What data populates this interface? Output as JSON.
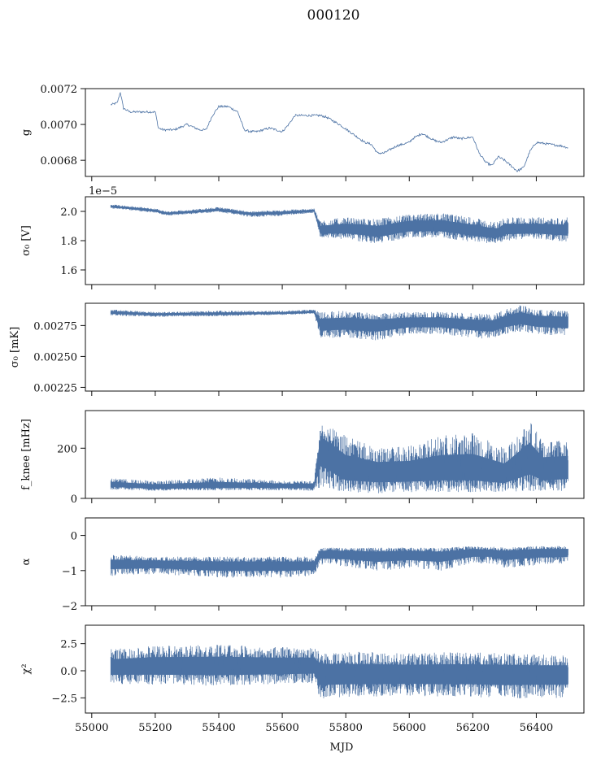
{
  "figure": {
    "title": "000120",
    "xlabel": "MJD",
    "x_ticks": [
      55000,
      55200,
      55400,
      55600,
      55800,
      56000,
      56200,
      56400
    ],
    "x_tick_labels": [
      "55000",
      "55200",
      "55400",
      "55600",
      "55800",
      "56000",
      "56200",
      "56400"
    ]
  },
  "colors": {
    "series": "#4c72a4",
    "axis": "#111111"
  },
  "chart_data": [
    {
      "type": "line",
      "id": "gain",
      "ylabel": "g",
      "xlim": [
        54980,
        56550
      ],
      "ylim": [
        0.00671,
        0.0072
      ],
      "y_ticks": [
        0.0068,
        0.007,
        0.0072
      ],
      "y_tick_labels": [
        "0.0068",
        "0.0070",
        "0.0072"
      ],
      "offset_text": "",
      "style": "thin",
      "series": [
        {
          "x": [
            55060,
            55080,
            55090,
            55100,
            55120,
            55150,
            55180,
            55200,
            55210,
            55225,
            55260,
            55300,
            55340,
            55360,
            55380,
            55400,
            55430,
            55460,
            55480,
            55500,
            55520,
            55560,
            55600,
            55620,
            55640,
            55680,
            55700,
            55720,
            55740,
            55780,
            55820,
            55860,
            55880,
            55900,
            55920,
            55960,
            56000,
            56010,
            56040,
            56080,
            56100,
            56140,
            56160,
            56200,
            56220,
            56240,
            56260,
            56280,
            56300,
            56320,
            56340,
            56360,
            56380,
            56400,
            56440,
            56480,
            56500
          ],
          "y": [
            0.00711,
            0.00712,
            0.00718,
            0.00709,
            0.00707,
            0.00707,
            0.00707,
            0.00707,
            0.00698,
            0.00697,
            0.00697,
            0.007,
            0.00697,
            0.00697,
            0.00705,
            0.0071,
            0.0071,
            0.00707,
            0.00697,
            0.00696,
            0.00696,
            0.00698,
            0.00696,
            0.007,
            0.00705,
            0.00705,
            0.00705,
            0.00705,
            0.00704,
            0.007,
            0.00695,
            0.0069,
            0.00689,
            0.00684,
            0.00684,
            0.00688,
            0.0069,
            0.00692,
            0.00695,
            0.00691,
            0.0069,
            0.00693,
            0.00692,
            0.00693,
            0.00684,
            0.00679,
            0.00677,
            0.00682,
            0.0068,
            0.00677,
            0.00674,
            0.00676,
            0.00685,
            0.0069,
            0.00689,
            0.00688,
            0.00687
          ]
        }
      ]
    },
    {
      "type": "line",
      "id": "sigma0_V",
      "ylabel": "σ₀ [V]",
      "xlim": [
        54980,
        56550
      ],
      "ylim": [
        1.5,
        2.1
      ],
      "y_ticks": [
        1.6,
        1.8,
        2.0
      ],
      "y_tick_labels": [
        "1.6",
        "1.8",
        "2.0"
      ],
      "offset_text": "1e−5",
      "style": "band",
      "series": [
        {
          "x": [
            55060,
            55200,
            55240,
            55400,
            55500,
            55600,
            55700,
            55720,
            55800,
            55850,
            55900,
            56000,
            56100,
            56200,
            56260,
            56280,
            56300,
            56400,
            56500
          ],
          "center": [
            2.035,
            2.005,
            1.985,
            2.01,
            1.985,
            1.99,
            2.005,
            1.87,
            1.88,
            1.88,
            1.86,
            1.9,
            1.9,
            1.87,
            1.85,
            1.85,
            1.88,
            1.88,
            1.87
          ],
          "lower": [
            2.02,
            1.99,
            1.97,
            1.995,
            1.96,
            1.97,
            1.99,
            1.82,
            1.81,
            1.79,
            1.78,
            1.82,
            1.82,
            1.79,
            1.78,
            1.78,
            1.8,
            1.81,
            1.79
          ],
          "upper": [
            2.05,
            2.02,
            2.0,
            2.03,
            2.0,
            2.01,
            2.02,
            1.94,
            1.96,
            1.95,
            1.95,
            1.98,
            1.99,
            1.96,
            1.93,
            1.93,
            1.96,
            1.96,
            1.96
          ]
        }
      ]
    },
    {
      "type": "line",
      "id": "sigma0_mK",
      "ylabel": "σ₀ [mK]",
      "xlim": [
        54980,
        56550
      ],
      "ylim": [
        0.00222,
        0.00293
      ],
      "y_ticks": [
        0.00225,
        0.0025,
        0.00275
      ],
      "y_tick_labels": [
        "0.00225",
        "0.00250",
        "0.00275"
      ],
      "offset_text": "",
      "style": "band",
      "series": [
        {
          "x": [
            55060,
            55200,
            55400,
            55600,
            55700,
            55720,
            55800,
            55900,
            56000,
            56100,
            56200,
            56260,
            56300,
            56350,
            56400,
            56500
          ],
          "center": [
            0.002855,
            0.00284,
            0.002845,
            0.00285,
            0.00286,
            0.00276,
            0.00277,
            0.00276,
            0.00278,
            0.00278,
            0.00276,
            0.00275,
            0.00278,
            0.00281,
            0.00279,
            0.00278
          ],
          "lower": [
            0.00283,
            0.00282,
            0.002825,
            0.002835,
            0.002845,
            0.00265,
            0.00265,
            0.00263,
            0.00268,
            0.00268,
            0.00265,
            0.00264,
            0.00268,
            0.0027,
            0.00268,
            0.00266
          ],
          "upper": [
            0.00288,
            0.00286,
            0.00287,
            0.00287,
            0.00288,
            0.00286,
            0.00287,
            0.00285,
            0.00286,
            0.00286,
            0.00285,
            0.00284,
            0.00288,
            0.00292,
            0.00288,
            0.00287
          ]
        }
      ]
    },
    {
      "type": "line",
      "id": "fknee",
      "ylabel": "f_knee [mHz]",
      "xlim": [
        54980,
        56550
      ],
      "ylim": [
        0,
        350
      ],
      "y_ticks": [
        0,
        200
      ],
      "y_tick_labels": [
        "0",
        "200"
      ],
      "offset_text": "",
      "style": "band",
      "series": [
        {
          "x": [
            55060,
            55200,
            55400,
            55600,
            55700,
            55720,
            55740,
            55800,
            55900,
            56000,
            56100,
            56200,
            56300,
            56380,
            56420,
            56500
          ],
          "center": [
            55,
            45,
            50,
            50,
            50,
            200,
            180,
            110,
            100,
            100,
            110,
            110,
            90,
            150,
            110,
            120
          ],
          "lower": [
            35,
            30,
            32,
            32,
            30,
            40,
            40,
            25,
            20,
            25,
            25,
            25,
            25,
            30,
            25,
            25
          ],
          "upper": [
            80,
            70,
            85,
            70,
            70,
            300,
            290,
            250,
            200,
            210,
            250,
            260,
            200,
            310,
            230,
            230
          ]
        }
      ]
    },
    {
      "type": "line",
      "id": "alpha",
      "ylabel": "α",
      "xlim": [
        54980,
        56550
      ],
      "ylim": [
        -2,
        0.5
      ],
      "y_ticks": [
        -2,
        -1,
        0
      ],
      "y_tick_labels": [
        "−2",
        "−1",
        "0"
      ],
      "offset_text": "",
      "style": "band",
      "series": [
        {
          "x": [
            55060,
            55200,
            55400,
            55600,
            55700,
            55720,
            55800,
            55900,
            56000,
            56100,
            56200,
            56260,
            56300,
            56400,
            56500
          ],
          "center": [
            -0.8,
            -0.8,
            -0.85,
            -0.85,
            -0.85,
            -0.5,
            -0.5,
            -0.55,
            -0.5,
            -0.55,
            -0.45,
            -0.45,
            -0.5,
            -0.45,
            -0.45
          ],
          "lower": [
            -1.15,
            -1.1,
            -1.2,
            -1.2,
            -1.15,
            -0.85,
            -0.9,
            -1.0,
            -0.95,
            -1.0,
            -0.8,
            -0.8,
            -0.95,
            -0.85,
            -0.8
          ],
          "upper": [
            -0.55,
            -0.6,
            -0.6,
            -0.6,
            -0.6,
            -0.35,
            -0.35,
            -0.35,
            -0.35,
            -0.35,
            -0.3,
            -0.35,
            -0.35,
            -0.3,
            -0.3
          ]
        }
      ]
    },
    {
      "type": "line",
      "id": "chi2",
      "ylabel": "χ²",
      "xlim": [
        54980,
        56550
      ],
      "ylim": [
        -3.9,
        4.2
      ],
      "y_ticks": [
        -2.5,
        0.0,
        2.5
      ],
      "y_tick_labels": [
        "−2.5",
        "0.0",
        "2.5"
      ],
      "offset_text": "",
      "style": "band",
      "series": [
        {
          "x": [
            55060,
            55200,
            55400,
            55600,
            55700,
            55720,
            55800,
            55900,
            56000,
            56100,
            56200,
            56300,
            56400,
            56500
          ],
          "center": [
            0.3,
            0.4,
            0.4,
            0.4,
            0.5,
            -0.3,
            -0.3,
            -0.3,
            -0.3,
            -0.3,
            -0.3,
            -0.3,
            -0.3,
            -0.3
          ],
          "lower": [
            -1.2,
            -1.3,
            -1.4,
            -1.2,
            -1.2,
            -2.6,
            -2.4,
            -2.4,
            -2.3,
            -2.4,
            -2.4,
            -2.6,
            -2.5,
            -2.5
          ],
          "upper": [
            2.0,
            2.3,
            2.4,
            2.2,
            2.1,
            1.8,
            1.8,
            1.7,
            1.6,
            1.7,
            1.7,
            1.6,
            1.5,
            1.5
          ]
        }
      ]
    }
  ]
}
